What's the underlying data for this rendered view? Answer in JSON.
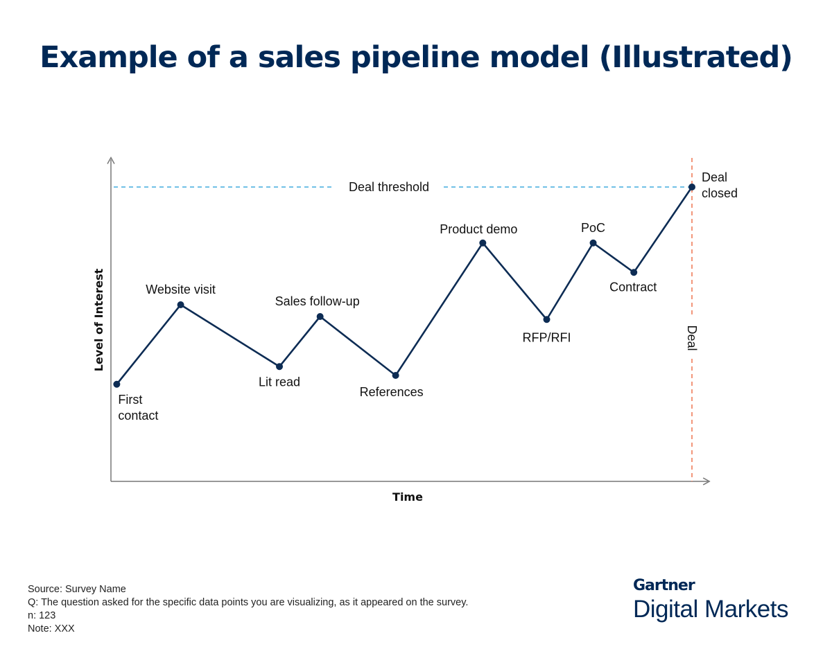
{
  "title": "Example of a sales pipeline model (Illustrated)",
  "chart_data": {
    "type": "line",
    "title": "Example of a sales pipeline model (Illustrated)",
    "xlabel": "Time",
    "ylabel": "Level of Interest",
    "grid": false,
    "xlim": [
      0,
      103
    ],
    "ylim": [
      0,
      110
    ],
    "points": [
      {
        "label": "First contact",
        "x": 1,
        "y": 33
      },
      {
        "label": "Website visit",
        "x": 12,
        "y": 60
      },
      {
        "label": "Lit read",
        "x": 29,
        "y": 39
      },
      {
        "label": "Sales follow-up",
        "x": 36,
        "y": 56
      },
      {
        "label": "References",
        "x": 49,
        "y": 36
      },
      {
        "label": "Product demo",
        "x": 64,
        "y": 81
      },
      {
        "label": "RFP/RFI",
        "x": 75,
        "y": 55
      },
      {
        "label": "PoC",
        "x": 83,
        "y": 81
      },
      {
        "label": "Contract",
        "x": 90,
        "y": 71
      },
      {
        "label": "Deal closed",
        "x": 100,
        "y": 100
      }
    ],
    "threshold": {
      "label": "Deal threshold",
      "y": 100,
      "color": "#1a9bd7"
    },
    "deal_line": {
      "label": "Deal",
      "x": 100,
      "color": "#f08a6c"
    },
    "line_color": "#0d2c54"
  },
  "footer": {
    "source": "Source: Survey Name",
    "question": "Q: The question asked for the specific data points you are visualizing, as it appeared on the survey.",
    "n": "n: 123",
    "note": "Note: XXX"
  },
  "logo": {
    "brand": "Gartner",
    "sub": "Digital Markets"
  }
}
